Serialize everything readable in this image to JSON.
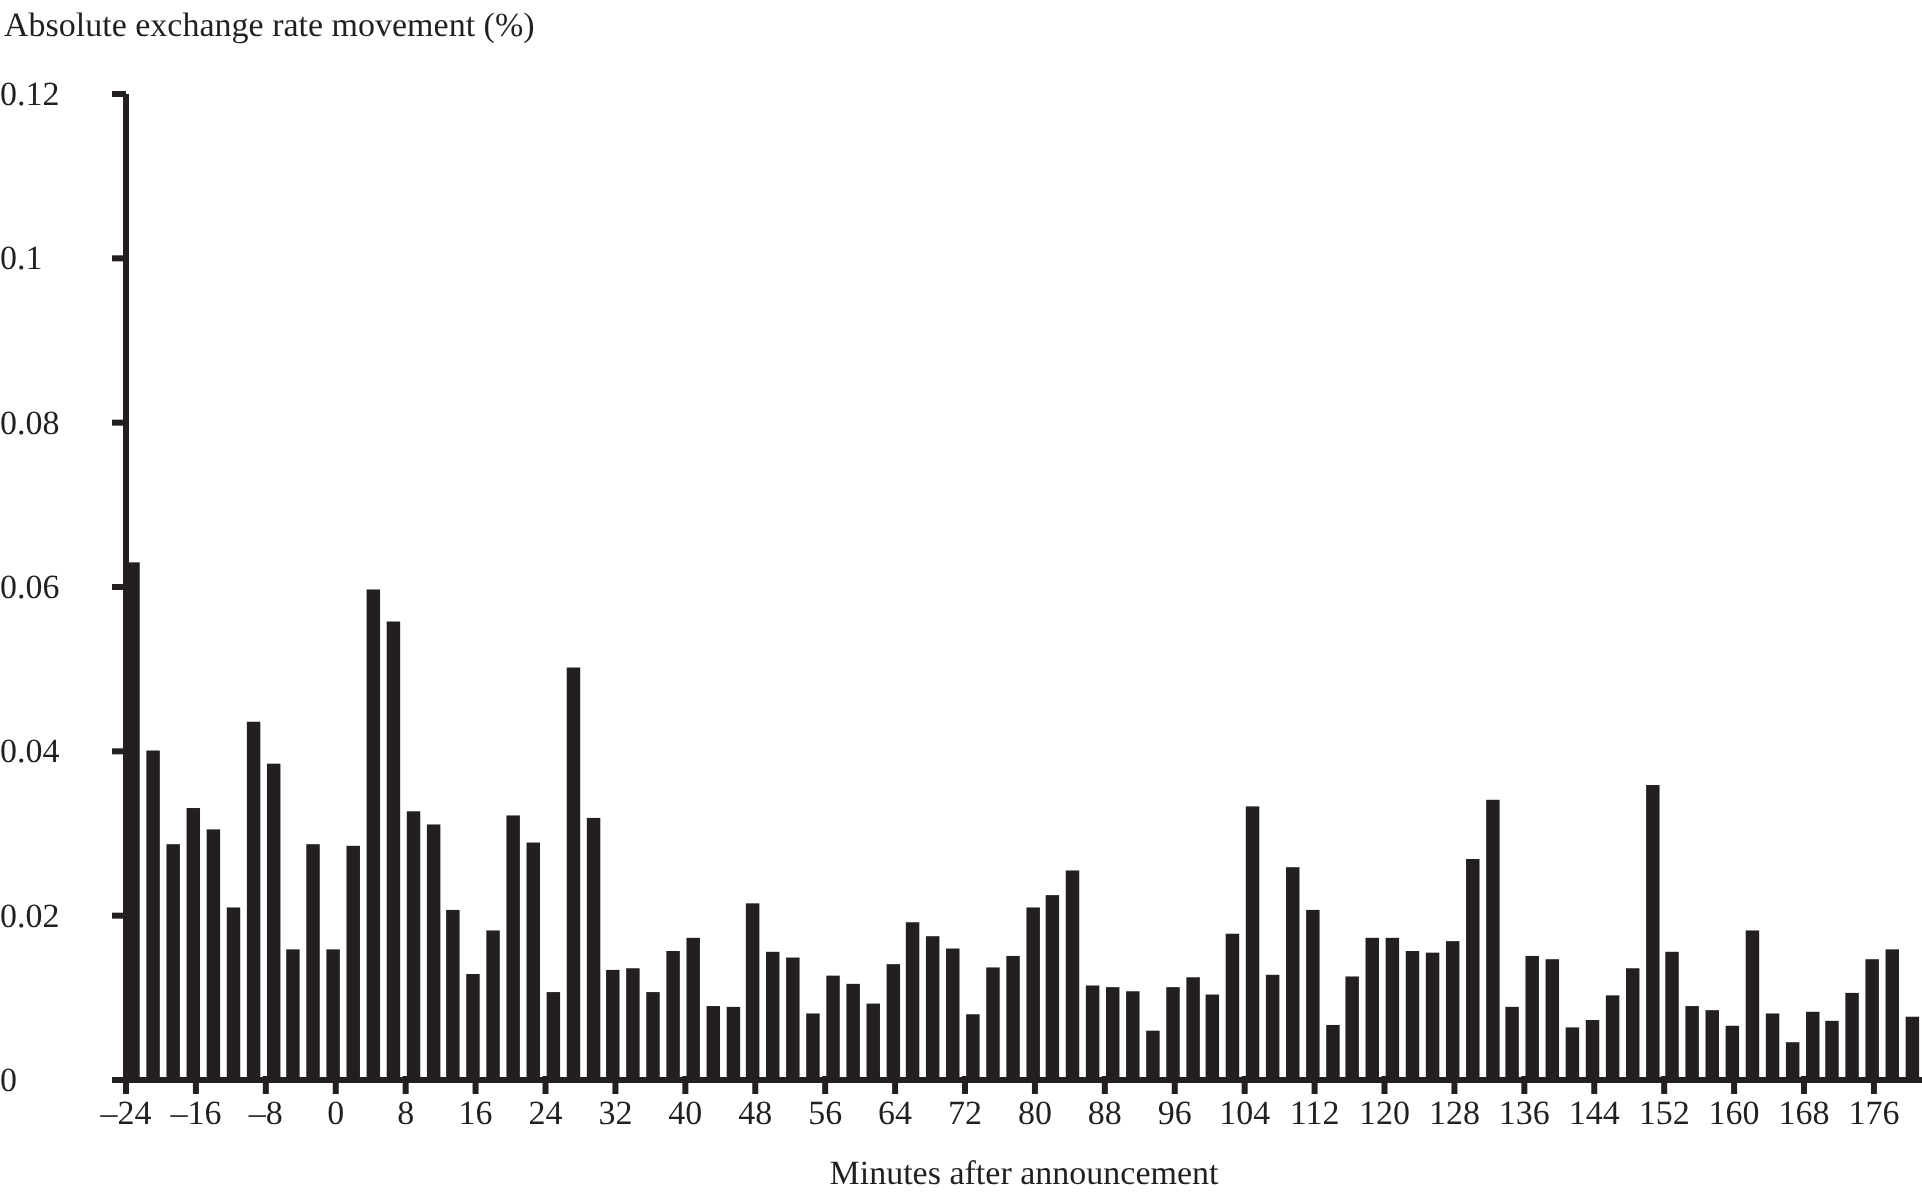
{
  "chart_data": {
    "type": "bar",
    "ylabel": "Absolute exchange rate movement (%)",
    "xlabel": "Minutes after announcement",
    "x": [
      -23.2,
      -20.9,
      -18.6,
      -16.3,
      -14.0,
      -11.7,
      -9.4,
      -7.1,
      -4.9,
      -2.6,
      -0.3,
      2.0,
      4.3,
      6.6,
      8.9,
      11.2,
      13.4,
      15.7,
      18.0,
      20.3,
      22.6,
      24.9,
      27.2,
      29.5,
      31.7,
      34.0,
      36.3,
      38.6,
      40.9,
      43.2,
      45.5,
      47.7,
      50.0,
      52.3,
      54.6,
      56.9,
      59.2,
      61.5,
      63.8,
      66.0,
      68.3,
      70.6,
      72.9,
      75.2,
      77.5,
      79.8,
      82.0,
      84.3,
      86.6,
      88.9,
      91.2,
      93.5,
      95.8,
      98.1,
      100.3,
      102.6,
      104.9,
      107.2,
      109.5,
      111.8,
      114.1,
      116.3,
      118.6,
      120.9,
      123.2,
      125.5,
      127.8,
      130.1,
      132.4,
      134.6,
      136.9,
      139.2,
      141.5,
      143.8,
      146.1,
      148.4,
      150.7,
      152.9,
      155.2,
      157.5,
      159.8,
      162.1,
      164.4,
      166.7,
      169.0,
      171.2,
      173.5,
      175.8,
      178.1,
      180.4
    ],
    "values": [
      0.063,
      0.0401,
      0.0287,
      0.0331,
      0.0305,
      0.021,
      0.0436,
      0.0385,
      0.0159,
      0.0287,
      0.0159,
      0.0285,
      0.0597,
      0.0558,
      0.0327,
      0.0311,
      0.0207,
      0.0129,
      0.0182,
      0.0322,
      0.0289,
      0.0107,
      0.0502,
      0.0319,
      0.0134,
      0.0136,
      0.0107,
      0.0157,
      0.0173,
      0.009,
      0.0089,
      0.0215,
      0.0156,
      0.0149,
      0.0081,
      0.0127,
      0.0117,
      0.0093,
      0.0141,
      0.0192,
      0.0175,
      0.016,
      0.008,
      0.0137,
      0.0151,
      0.021,
      0.0225,
      0.0255,
      0.0115,
      0.0113,
      0.0108,
      0.006,
      0.0113,
      0.0125,
      0.0104,
      0.0178,
      0.0333,
      0.0128,
      0.0259,
      0.0207,
      0.0067,
      0.0126,
      0.0173,
      0.0173,
      0.0157,
      0.0155,
      0.0169,
      0.0269,
      0.0341,
      0.0089,
      0.0151,
      0.0147,
      0.0064,
      0.0073,
      0.0103,
      0.0136,
      0.0359,
      0.0156,
      0.009,
      0.0085,
      0.0066,
      0.0182,
      0.0081,
      0.0046,
      0.0083,
      0.0072,
      0.0106,
      0.0147,
      0.0159,
      0.0077
    ],
    "color": "#231f20",
    "xlim": [
      -24,
      181.5
    ],
    "xticks": [
      {
        "value": -24,
        "label": "–24"
      },
      {
        "value": -16,
        "label": "–16"
      },
      {
        "value": -8,
        "label": "–8"
      },
      0,
      8,
      16,
      24,
      32,
      40,
      48,
      56,
      64,
      72,
      80,
      88,
      96,
      104,
      112,
      120,
      128,
      136,
      144,
      152,
      160,
      168,
      176
    ],
    "ylim": [
      0,
      0.12
    ],
    "yticks": [
      0,
      0.02,
      0.04,
      0.06,
      0.08,
      0.1,
      0.12
    ],
    "grid": false
  }
}
